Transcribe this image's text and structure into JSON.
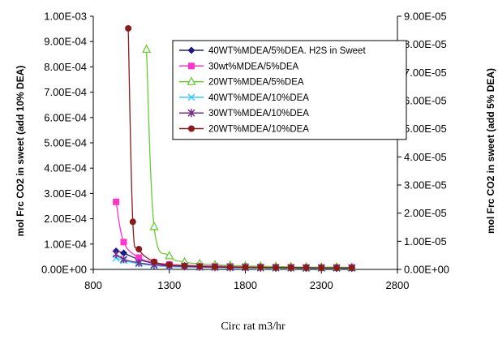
{
  "chart_data": {
    "type": "scatter",
    "title": "",
    "xlabel": "Circ rat m3/hr",
    "ylabel": "mol Frc CO2 in sweet (add 10% DEA)",
    "y2label": "mol Frc CO2 in sweet (add 5% DEA)",
    "xlim": [
      800,
      2800
    ],
    "ylim": [
      0,
      0.001
    ],
    "y2lim": [
      0,
      9e-05
    ],
    "x_ticks": [
      "800",
      "1300",
      "1800",
      "2300",
      "2800"
    ],
    "y_ticks": [
      "0.00E+00",
      "1.00E-04",
      "2.00E-04",
      "3.00E-04",
      "4.00E-04",
      "5.00E-04",
      "6.00E-04",
      "7.00E-04",
      "8.00E-04",
      "9.00E-04",
      "1.00E-03"
    ],
    "y2_ticks": [
      "0.00E+00",
      "1.00E-05",
      "2.00E-05",
      "3.00E-05",
      "4.00E-05",
      "5.00E-05",
      "6.00E-05",
      "7.00E-05",
      "8.00E-05",
      "9.00E-05"
    ],
    "grid": false,
    "legend_position": "top-right",
    "series": [
      {
        "name": "40WT%MDEA/5%DEA. H2S in Sweet",
        "axis": "right",
        "color": "#1a1a8c",
        "marker": "diamond",
        "x": [
          950,
          1000,
          1100,
          1200,
          1300,
          1400,
          1500,
          1600,
          1700,
          1800,
          1900,
          2000,
          2100,
          2200,
          2300,
          2400,
          2500
        ],
        "y": [
          6.5e-06,
          5.8e-06,
          3.5e-06,
          2.2e-06,
          1.5e-06,
          1.2e-06,
          1e-06,
          9e-07,
          8e-07,
          7e-07,
          6e-07,
          5e-07,
          5e-07,
          4e-07,
          4e-07,
          4e-07,
          4e-07
        ]
      },
      {
        "name": "30wt%MDEA/5%DEA",
        "axis": "right",
        "color": "#ff33cc",
        "marker": "square",
        "x": [
          950,
          1000,
          1100,
          1200,
          1300,
          1400,
          1500,
          1600,
          1700,
          1800,
          1900,
          2000,
          2100,
          2200,
          2300,
          2400,
          2500
        ],
        "y": [
          2.4e-05,
          9.7e-06,
          4.2e-06,
          2.5e-06,
          1.8e-06,
          1.5e-06,
          1.3e-06,
          1.2e-06,
          1.1e-06,
          1e-06,
          9e-07,
          8e-07,
          8e-07,
          7e-07,
          7e-07,
          7e-07,
          7e-07
        ]
      },
      {
        "name": "20WT%MDEA/5%DEA",
        "axis": "right",
        "color": "#66cc33",
        "marker": "triangle",
        "x": [
          1150,
          1200,
          1300,
          1400,
          1500,
          1600,
          1700,
          1800,
          1900,
          2000,
          2100,
          2200,
          2300,
          2400,
          2500
        ],
        "y": [
          7.82e-05,
          1.52e-05,
          4.8e-06,
          2.6e-06,
          2e-06,
          1.6e-06,
          1.4e-06,
          1.2e-06,
          1.1e-06,
          1e-06,
          9e-07,
          8e-07,
          8e-07,
          8e-07,
          7e-07
        ]
      },
      {
        "name": "40WT%MDEA/10%DEA",
        "axis": "left",
        "color": "#33ccff",
        "marker": "x",
        "x": [
          950,
          1000,
          1100,
          1200,
          1300,
          1400,
          1500,
          1600,
          1700,
          1800,
          1900,
          2000,
          2100,
          2200,
          2300,
          2400,
          2500
        ],
        "y": [
          4.5e-05,
          3.5e-05,
          2.2e-05,
          1.5e-05,
          1.1e-05,
          9e-06,
          8e-06,
          7e-06,
          6e-06,
          6e-06,
          5e-06,
          5e-06,
          5e-06,
          4e-06,
          4e-06,
          4e-06,
          4e-06
        ]
      },
      {
        "name": "30WT%MDEA/10%DEA",
        "axis": "left",
        "color": "#7a2a8a",
        "marker": "star",
        "x": [
          950,
          1000,
          1100,
          1200,
          1300,
          1400,
          1500,
          1600,
          1700,
          1800,
          1900,
          2000,
          2100,
          2200,
          2300,
          2400,
          2500
        ],
        "y": [
          6e-05,
          4e-05,
          2.6e-05,
          1.8e-05,
          1.4e-05,
          1.2e-05,
          1e-05,
          9e-06,
          8e-06,
          8e-06,
          7e-06,
          7e-06,
          6e-06,
          6e-06,
          6e-06,
          6e-06,
          6e-06
        ]
      },
      {
        "name": "20WT%MDEA/10%DEA",
        "axis": "left",
        "color": "#8b1a1a",
        "marker": "circle",
        "x": [
          1030,
          1060,
          1100,
          1200,
          1300,
          1400,
          1500,
          1600,
          1700,
          1800,
          1900,
          2000,
          2100,
          2200,
          2300,
          2400,
          2500
        ],
        "y": [
          0.000952,
          0.000188,
          8e-05,
          3e-05,
          1.8e-05,
          1.4e-05,
          1.2e-05,
          1e-05,
          9e-06,
          8e-06,
          8e-06,
          7e-06,
          7e-06,
          7e-06,
          6e-06,
          6e-06,
          6e-06
        ]
      }
    ]
  }
}
